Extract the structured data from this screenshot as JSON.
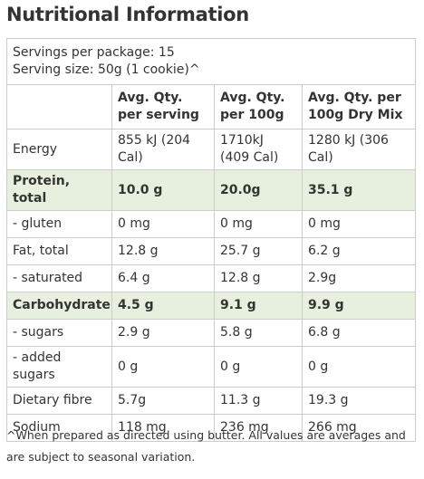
{
  "title": "Nutritional Information",
  "servings": [
    "Servings per package: 15",
    "Serving size: 50g (1 cookie)^"
  ],
  "table": {
    "header": [
      "",
      "Avg. Qty. per serving",
      "Avg. Qty. per 100g",
      "Avg. Qty. per 100g Dry Mix"
    ],
    "rows": [
      {
        "cells": [
          "Energy",
          "855 kJ (204 Cal)",
          "1710kJ (409 Cal)",
          "1280 kJ (306 Cal)"
        ],
        "highlight": false
      },
      {
        "cells": [
          "Protein, total",
          "10.0 g",
          "20.0g",
          "35.1 g"
        ],
        "highlight": true
      },
      {
        "cells": [
          "- gluten",
          "0 mg",
          "0 mg",
          "0 mg"
        ],
        "highlight": false
      },
      {
        "cells": [
          "Fat, total",
          "12.8 g",
          "25.7 g",
          "6.2 g"
        ],
        "highlight": false
      },
      {
        "cells": [
          "- saturated",
          "6.4 g",
          "12.8 g",
          "2.9g"
        ],
        "highlight": false
      },
      {
        "cells": [
          "Carbohydrate",
          "4.5 g",
          "9.1 g",
          "9.9 g"
        ],
        "highlight": true
      },
      {
        "cells": [
          "- sugars",
          "2.9 g",
          "5.8 g",
          "6.8 g"
        ],
        "highlight": false
      },
      {
        "cells": [
          "- added sugars",
          "0 g",
          "0 g",
          "0 g"
        ],
        "highlight": false
      },
      {
        "cells": [
          "Dietary fibre",
          "5.7g",
          "11.3 g",
          "19.3 g"
        ],
        "highlight": false
      },
      {
        "cells": [
          "Sodium",
          "118 mg",
          "236 mg",
          "266 mg"
        ],
        "highlight": false
      }
    ]
  },
  "footnote": "^When prepared as directed using butter. All values are averages and are subject to seasonal variation."
}
